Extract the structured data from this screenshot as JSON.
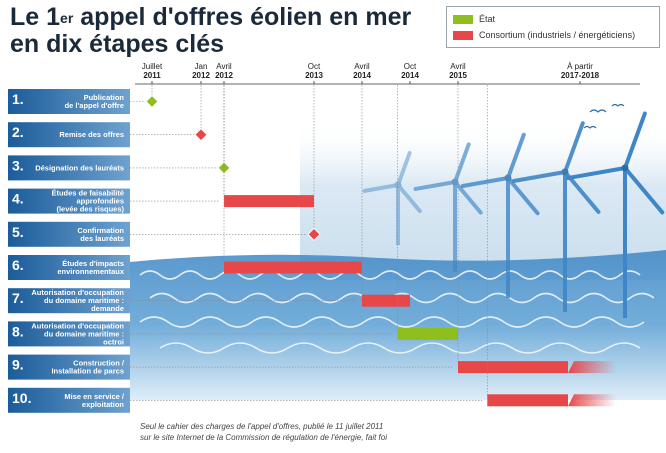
{
  "title": {
    "prefix": "Le 1",
    "sup": "er",
    "line1_rest": " appel d'offres éolien en mer",
    "line2": "en dix étapes clés"
  },
  "legend": {
    "items": [
      {
        "label": "État",
        "color": "#8fbf1f"
      },
      {
        "label": "Consortium (industriels / énergéticiens)",
        "color": "#e8474a"
      }
    ]
  },
  "chart_data": {
    "type": "gantt",
    "title": "Le 1er appel d'offres éolien en mer en dix étapes clés",
    "time_axis": [
      {
        "label": [
          "Juillet",
          "2011"
        ],
        "date": 2011.5
      },
      {
        "label": [
          "Jan",
          "2012"
        ],
        "date": 2012.0
      },
      {
        "label": [
          "Avril",
          "2012"
        ],
        "date": 2012.25
      },
      {
        "label": [
          "Oct",
          "2013"
        ],
        "date": 2013.75
      },
      {
        "label": [
          "Avril",
          "2014"
        ],
        "date": 2014.25
      },
      {
        "label": [
          "Oct",
          "2014"
        ],
        "date": 2014.75
      },
      {
        "label": [
          "Avril",
          "2015"
        ],
        "date": 2015.25
      },
      {
        "label": [
          "À partir",
          "2017-2018"
        ],
        "date": 2016.5
      }
    ],
    "steps": [
      {
        "num": "1.",
        "label": [
          "Publication",
          "de l'appel d'offre"
        ],
        "type": "milestone",
        "actor": "etat",
        "at": 2011.5
      },
      {
        "num": "2.",
        "label": [
          "Remise des offres"
        ],
        "type": "milestone",
        "actor": "consortium",
        "at": 2012.0
      },
      {
        "num": "3.",
        "label": [
          "Désignation des lauréats"
        ],
        "type": "milestone",
        "actor": "etat",
        "at": 2012.25
      },
      {
        "num": "4.",
        "label": [
          "Études de faisabilité",
          "approfondies",
          "(levée des risques)"
        ],
        "type": "bar",
        "actor": "consortium",
        "start": 2012.25,
        "end": 2013.75
      },
      {
        "num": "5.",
        "label": [
          "Confirmation",
          "des lauréats"
        ],
        "type": "milestone",
        "actor": "consortium",
        "at": 2013.75
      },
      {
        "num": "6.",
        "label": [
          "Études d'impacts",
          "environnementaux"
        ],
        "type": "bar",
        "actor": "consortium",
        "start": 2012.25,
        "end": 2014.25
      },
      {
        "num": "7.",
        "label": [
          "Autorisation d'occupation",
          "du domaine maritime :",
          "demande"
        ],
        "type": "bar",
        "actor": "consortium",
        "start": 2014.25,
        "end": 2014.75
      },
      {
        "num": "8.",
        "label": [
          "Autorisation d'occupation",
          "du domaine maritime :",
          "octroi"
        ],
        "type": "bar",
        "actor": "etat",
        "start": 2014.62,
        "end": 2015.25
      },
      {
        "num": "9.",
        "label": [
          "Construction /",
          "Installation de parcs"
        ],
        "type": "bar",
        "actor": "consortium",
        "start": 2015.25,
        "end": 2017.0,
        "open_ended": true
      },
      {
        "num": "10.",
        "label": [
          "Mise en service /",
          "exploitation"
        ],
        "type": "bar",
        "actor": "consortium",
        "start": 2015.55,
        "end": 2017.0,
        "open_ended": true
      }
    ],
    "colors": {
      "etat": "#8fbf1f",
      "consortium": "#e8474a"
    }
  },
  "footnote": {
    "line1": "Seul le cahier des charges de l'appel d'offres, publié le 11 juillet 2011",
    "line2": "sur le site Internet de la Commission de régulation de l'énergie, fait foi"
  }
}
